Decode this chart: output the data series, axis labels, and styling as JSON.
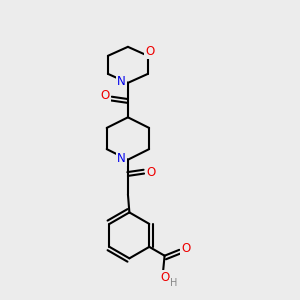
{
  "bg_color": "#ececec",
  "bond_color": "#000000",
  "bond_width": 1.5,
  "atom_colors": {
    "N": "#0000ee",
    "O": "#ee0000",
    "H": "#888888"
  },
  "font_size": 8.5
}
